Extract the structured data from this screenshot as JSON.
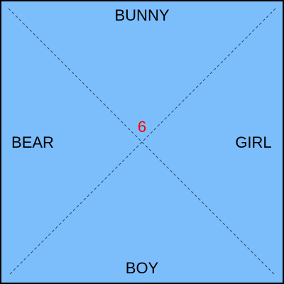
{
  "board": {
    "background_color": "#7cbefc",
    "border_color": "#000000",
    "diagonal_color": "#2a4a6a"
  },
  "labels": {
    "top": "BUNNY",
    "bottom": "BOY",
    "left": "BEAR",
    "right": "GIRL"
  },
  "center": {
    "value": "6",
    "color": "#ff0000"
  }
}
